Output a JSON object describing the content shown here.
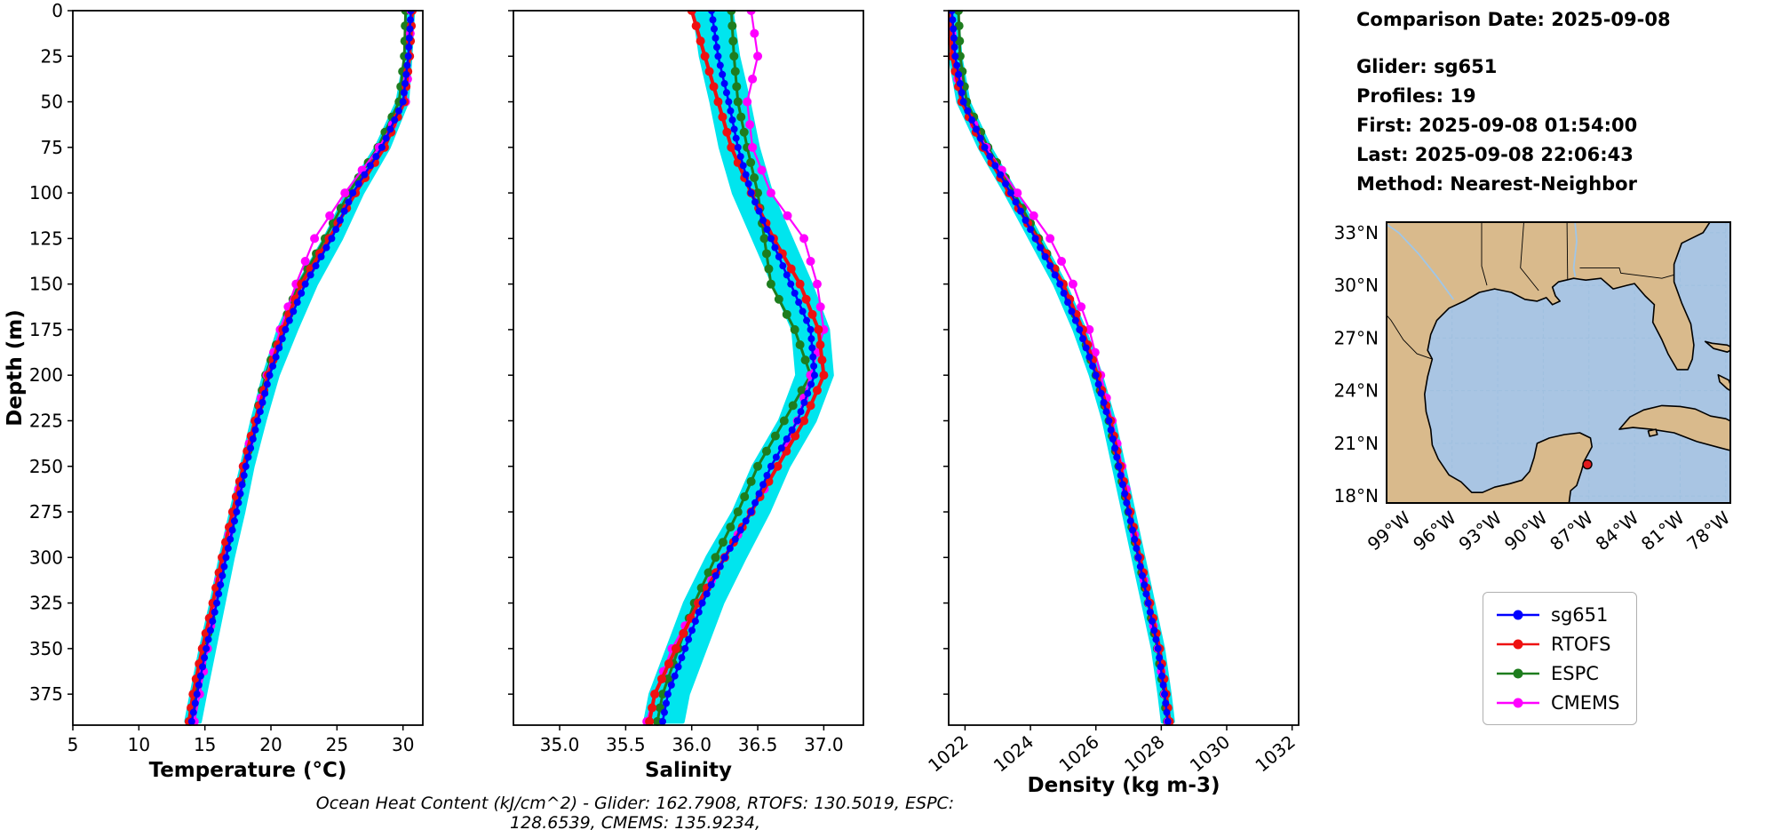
{
  "info_panel": {
    "comparison_date": "Comparison Date: 2025-09-08",
    "glider": "Glider: sg651",
    "profiles": "Profiles: 19",
    "first": "First: 2025-09-08 01:54:00",
    "last": "Last: 2025-09-08 22:06:43",
    "method": "Method: Nearest-Neighbor"
  },
  "footer": {
    "ohc_caption": "Ocean Heat Content (kJ/cm^2) - Glider: 162.7908,  RTOFS: 130.5019,  ESPC: 128.6539,  CMEMS: 135.9234,"
  },
  "legend": {
    "items": [
      "sg651",
      "RTOFS",
      "ESPC",
      "CMEMS"
    ]
  },
  "chart_data": {
    "type": "line",
    "subtype": "vertical-profile-comparison",
    "depth_axis": {
      "label": "Depth (m)",
      "lim": [
        0,
        392
      ],
      "ticks": [
        0,
        25,
        50,
        75,
        100,
        125,
        150,
        175,
        200,
        225,
        250,
        275,
        300,
        325,
        350,
        375
      ]
    },
    "depths": [
      0,
      25,
      50,
      75,
      100,
      125,
      150,
      175,
      200,
      225,
      250,
      275,
      300,
      325,
      350,
      375,
      390
    ],
    "envelope_color": "#00e5ee",
    "series_meta": [
      {
        "name": "sg651",
        "color": "#0000ff",
        "line_width": 2.5,
        "marker_radius": 4,
        "marker_every_m": 5
      },
      {
        "name": "RTOFS",
        "color": "#ee1111",
        "line_width": 4,
        "marker_radius": 5,
        "marker_every_m": 10
      },
      {
        "name": "ESPC",
        "color": "#1e7d1e",
        "line_width": 3,
        "marker_radius": 5,
        "marker_every_m": 10
      },
      {
        "name": "CMEMS",
        "color": "#ff00ff",
        "line_width": 2.2,
        "marker_radius": 5,
        "marker_every_m": 15
      }
    ],
    "panels": [
      {
        "key": "temperature",
        "xlabel": "Temperature (°C)",
        "xlim": [
          5,
          31.5
        ],
        "xticks": [
          5,
          10,
          15,
          20,
          25,
          30
        ],
        "xtick_labels": [
          "5",
          "10",
          "15",
          "20",
          "25",
          "30"
        ],
        "rotate_xticks": false,
        "show_depth_labels": true,
        "envelope": {
          "lo": [
            30.4,
            30.2,
            29.6,
            28.0,
            25.8,
            24.1,
            22.1,
            20.6,
            19.5,
            18.6,
            17.8,
            17.0,
            16.2,
            15.5,
            14.7,
            14.0,
            13.6
          ],
          "hi": [
            30.75,
            30.55,
            30.3,
            28.9,
            26.9,
            25.3,
            23.4,
            21.9,
            20.5,
            19.5,
            18.6,
            17.9,
            17.1,
            16.4,
            15.7,
            15.0,
            14.6
          ]
        },
        "series": [
          {
            "name": "sg651",
            "values": [
              30.6,
              30.4,
              30.0,
              28.4,
              26.2,
              24.6,
              22.6,
              21.1,
              19.9,
              19.0,
              18.1,
              17.4,
              16.6,
              15.9,
              15.1,
              14.4,
              14.0
            ]
          },
          {
            "name": "RTOFS",
            "values": [
              30.7,
              30.5,
              30.1,
              28.6,
              26.4,
              24.4,
              22.3,
              20.9,
              19.8,
              18.8,
              17.9,
              17.1,
              16.3,
              15.6,
              14.8,
              14.1,
              13.8
            ]
          },
          {
            "name": "ESPC",
            "values": [
              30.2,
              30.1,
              29.7,
              28.1,
              25.9,
              24.1,
              22.1,
              20.8,
              19.6,
              18.8,
              18.0,
              17.2,
              16.4,
              15.7,
              15.0,
              14.3,
              13.9
            ]
          },
          {
            "name": "CMEMS",
            "values": [
              30.6,
              30.5,
              30.2,
              28.2,
              25.6,
              23.3,
              21.9,
              20.7,
              19.7,
              18.8,
              17.9,
              17.2,
              16.4,
              15.7,
              15.2,
              14.6,
              14.2
            ]
          }
        ]
      },
      {
        "key": "salinity",
        "xlabel": "Salinity",
        "xlim": [
          34.65,
          37.3
        ],
        "xticks": [
          35.0,
          35.5,
          36.0,
          36.5,
          37.0
        ],
        "xtick_labels": [
          "35.0",
          "35.5",
          "36.0",
          "36.5",
          "37.0"
        ],
        "rotate_xticks": false,
        "show_depth_labels": false,
        "envelope": {
          "lo": [
            36.02,
            36.07,
            36.15,
            36.22,
            36.32,
            36.47,
            36.62,
            36.77,
            36.8,
            36.67,
            36.47,
            36.32,
            36.12,
            35.95,
            35.82,
            35.69,
            35.65
          ],
          "hi": [
            36.3,
            36.35,
            36.43,
            36.5,
            36.6,
            36.75,
            36.9,
            37.03,
            37.06,
            36.93,
            36.73,
            36.58,
            36.4,
            36.23,
            36.1,
            35.97,
            35.93
          ]
        },
        "series": [
          {
            "name": "sg651",
            "values": [
              36.15,
              36.2,
              36.28,
              36.35,
              36.45,
              36.6,
              36.75,
              36.9,
              36.93,
              36.8,
              36.6,
              36.45,
              36.25,
              36.08,
              35.95,
              35.82,
              35.78
            ]
          },
          {
            "name": "RTOFS",
            "values": [
              36.0,
              36.1,
              36.2,
              36.3,
              36.45,
              36.62,
              36.82,
              36.96,
              37.0,
              36.85,
              36.65,
              36.45,
              36.25,
              36.05,
              35.88,
              35.72,
              35.68
            ]
          },
          {
            "name": "ESPC",
            "values": [
              36.3,
              36.32,
              36.35,
              36.42,
              36.5,
              36.55,
              36.6,
              36.78,
              36.9,
              36.7,
              36.5,
              36.35,
              36.18,
              36.02,
              35.9,
              35.78,
              35.74
            ]
          },
          {
            "name": "CMEMS",
            "values": [
              36.45,
              36.5,
              36.42,
              36.46,
              36.6,
              36.85,
              36.95,
              37.0,
              36.9,
              36.8,
              36.65,
              36.45,
              36.25,
              36.05,
              35.85,
              35.72,
              35.66
            ]
          }
        ]
      },
      {
        "key": "density",
        "xlabel": "Density (kg m-3)",
        "xlim": [
          1021.5,
          1032.2
        ],
        "xticks": [
          1022,
          1024,
          1026,
          1028,
          1030,
          1032
        ],
        "xtick_labels": [
          "1022",
          "1024",
          "1026",
          "1028",
          "1030",
          "1032"
        ],
        "rotate_xticks": true,
        "show_depth_labels": false,
        "envelope": {
          "lo": [
            1021.45,
            1021.55,
            1021.8,
            1022.45,
            1023.25,
            1024.0,
            1024.75,
            1025.35,
            1025.85,
            1026.25,
            1026.55,
            1026.85,
            1027.15,
            1027.45,
            1027.75,
            1027.95,
            1028.05
          ],
          "hi": [
            1021.75,
            1021.85,
            1022.1,
            1022.75,
            1023.55,
            1024.3,
            1025.05,
            1025.65,
            1026.15,
            1026.55,
            1026.85,
            1027.15,
            1027.45,
            1027.75,
            1028.05,
            1028.25,
            1028.35
          ]
        },
        "series": [
          {
            "name": "sg651",
            "values": [
              1021.6,
              1021.7,
              1021.95,
              1022.6,
              1023.4,
              1024.15,
              1024.9,
              1025.5,
              1026.0,
              1026.4,
              1026.7,
              1027.0,
              1027.3,
              1027.6,
              1027.9,
              1028.1,
              1028.2
            ]
          },
          {
            "name": "RTOFS",
            "values": [
              1021.5,
              1021.6,
              1021.9,
              1022.55,
              1023.35,
              1024.2,
              1025.0,
              1025.6,
              1026.05,
              1026.45,
              1026.75,
              1027.05,
              1027.35,
              1027.65,
              1027.95,
              1028.15,
              1028.25
            ]
          },
          {
            "name": "ESPC",
            "values": [
              1021.8,
              1021.85,
              1022.05,
              1022.7,
              1023.5,
              1024.25,
              1025.0,
              1025.55,
              1026.0,
              1026.4,
              1026.7,
              1027.0,
              1027.3,
              1027.6,
              1027.88,
              1028.08,
              1028.18
            ]
          },
          {
            "name": "CMEMS",
            "values": [
              1021.55,
              1021.65,
              1021.9,
              1022.65,
              1023.6,
              1024.6,
              1025.3,
              1025.8,
              1026.15,
              1026.5,
              1026.8,
              1027.05,
              1027.32,
              1027.62,
              1027.9,
              1028.1,
              1028.2
            ]
          }
        ]
      }
    ]
  },
  "map": {
    "extent": {
      "lon": [
        -100.3,
        -77.7
      ],
      "lat": [
        17.6,
        33.6
      ]
    },
    "lat_ticks": {
      "values": [
        33,
        30,
        27,
        24,
        21,
        18
      ],
      "labels": [
        "33°N",
        "30°N",
        "27°N",
        "24°N",
        "21°N",
        "18°N"
      ]
    },
    "lon_ticks": {
      "values": [
        -99,
        -96,
        -93,
        -90,
        -87,
        -84,
        -81,
        -78
      ],
      "labels": [
        "99°W",
        "96°W",
        "93°W",
        "90°W",
        "87°W",
        "84°W",
        "81°W",
        "78°W"
      ]
    },
    "colors": {
      "land": "#d9ba8c",
      "water": "#a9c5e3",
      "coast": "#000000",
      "grid": "#9fc0e0",
      "river": "#9fc6e8"
    },
    "glider_marker": {
      "lon": -87.1,
      "lat": 19.8,
      "color": "#e31a1c"
    }
  }
}
